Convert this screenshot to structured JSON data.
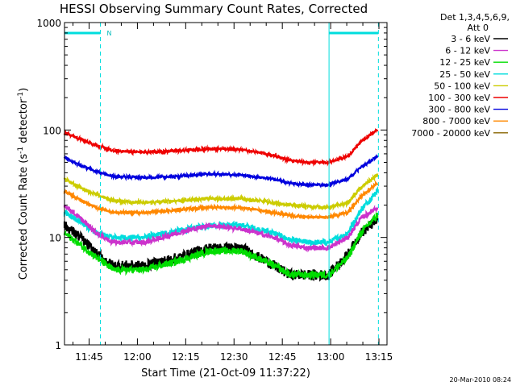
{
  "chart_data": {
    "type": "line",
    "title": "HESSI Observing Summary Count Rates, Corrected",
    "xlabel": "Start Time (21-Oct-09 11:37:22)",
    "ylabel_main": "Corrected Count Rate (s",
    "ylabel_sup1": "-1",
    "ylabel_mid": " detector",
    "ylabel_sup2": "-1",
    "ylabel_end": ")",
    "y_scale": "log",
    "ylim": [
      1,
      1000
    ],
    "xlim": [
      "11:37:22",
      "13:17:30"
    ],
    "x_ticks": [
      "11:45",
      "12:00",
      "12:15",
      "12:30",
      "12:45",
      "13:00",
      "13:15"
    ],
    "y_ticks": [
      "1",
      "10",
      "100",
      "1000"
    ],
    "legend_header": [
      "Det 1,3,4,5,6,9,",
      "Att 0"
    ],
    "legend_placement": "right",
    "footer_date": "20-Mar-2010 08:24",
    "night_marker_label": "N",
    "night_intervals": [
      [
        "11:37:22",
        "11:48:30"
      ],
      [
        "12:59:30",
        "13:14:50"
      ]
    ],
    "x_key_minutes": [
      0,
      5,
      10,
      15,
      25,
      35,
      45,
      55,
      65,
      70,
      75,
      82,
      88,
      92,
      97
    ],
    "series": [
      {
        "name": "3 - 6 keV",
        "color": "#000000",
        "values": [
          13,
          10,
          7,
          5.5,
          5.5,
          6.5,
          8,
          8,
          5.5,
          4.5,
          4.5,
          4.5,
          7,
          11,
          14.5
        ]
      },
      {
        "name": "6 - 12 keV",
        "color": "#cc33cc",
        "values": [
          20,
          15,
          11,
          9,
          9,
          11,
          13,
          12,
          10,
          8.5,
          8,
          8,
          10,
          15,
          19
        ]
      },
      {
        "name": "12 - 25 keV",
        "color": "#00dd00",
        "values": [
          11,
          8.5,
          6.5,
          5,
          5,
          6,
          7.5,
          7.5,
          5.5,
          4.5,
          4.5,
          4.5,
          6.5,
          11,
          16
        ]
      },
      {
        "name": "25 - 50 keV",
        "color": "#00dddd",
        "values": [
          17,
          14,
          11,
          10,
          10,
          11.5,
          13,
          13,
          11,
          9.5,
          9,
          9,
          11,
          18,
          27
        ]
      },
      {
        "name": "50 - 100 keV",
        "color": "#cccc00",
        "values": [
          35,
          29,
          25,
          22,
          21,
          22,
          23,
          23,
          21,
          20,
          19.5,
          19,
          21,
          29,
          38
        ]
      },
      {
        "name": "100 - 300 keV",
        "color": "#ee0000",
        "values": [
          95,
          82,
          72,
          64,
          62,
          64,
          67,
          66,
          58,
          52,
          50,
          50,
          57,
          78,
          100
        ]
      },
      {
        "name": "300 - 800 keV",
        "color": "#0000dd",
        "values": [
          55,
          47,
          41,
          37,
          36,
          37,
          39,
          38,
          35,
          32,
          31,
          31,
          35,
          45,
          56
        ]
      },
      {
        "name": "800 - 7000 keV",
        "color": "#ff8800",
        "values": [
          27,
          22,
          19,
          17,
          17,
          18,
          19,
          19,
          17,
          16,
          15.5,
          15.5,
          17,
          24,
          32
        ]
      },
      {
        "name": "7000 - 20000 keV",
        "color": "#886600",
        "values": []
      }
    ]
  }
}
